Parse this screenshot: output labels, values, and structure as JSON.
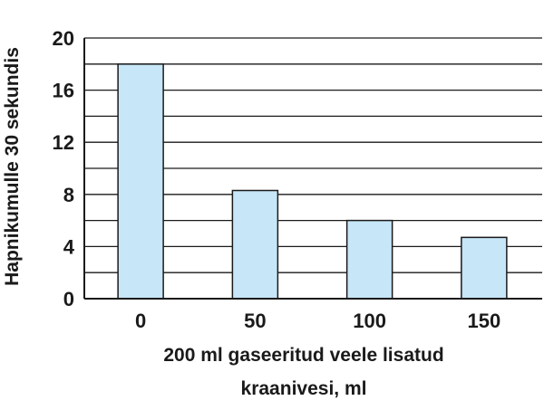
{
  "chart_data": {
    "type": "bar",
    "categories": [
      "0",
      "50",
      "100",
      "150"
    ],
    "values": [
      18,
      8.3,
      6,
      4.7
    ],
    "title": "",
    "xlabel_lines": [
      "200 ml gaseeritud veele lisatud",
      "kraanivesi, ml"
    ],
    "ylabel": "Hapnikumulle 30 sekundis",
    "ylim": [
      0,
      20
    ],
    "yticks": [
      0,
      4,
      8,
      12,
      16,
      20
    ],
    "grid": true,
    "legend": "none",
    "bar_fill": "#c7e6f7",
    "bar_stroke": "#1a1a1a",
    "grid_color": "#1a1a1a"
  }
}
